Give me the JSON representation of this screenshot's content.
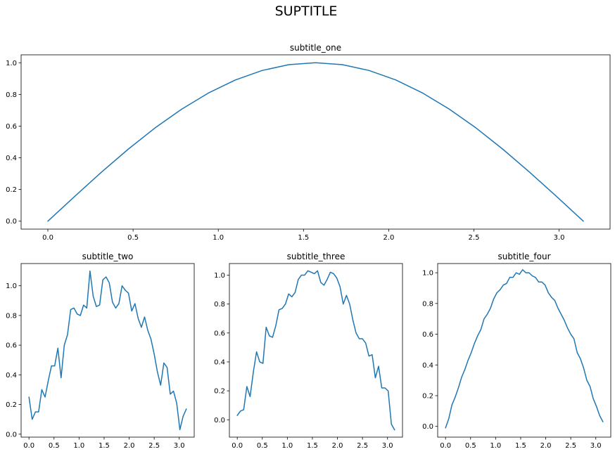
{
  "figure": {
    "suptitle": "SUPTITLE"
  },
  "chart_data": [
    {
      "type": "line",
      "title": "subtitle_one",
      "xlabel": "",
      "ylabel": "",
      "xlim": [
        -0.157,
        3.299
      ],
      "ylim": [
        -0.05,
        1.05
      ],
      "xticks": [
        0.0,
        0.5,
        1.0,
        1.5,
        2.0,
        2.5,
        3.0
      ],
      "xtick_labels": [
        "0.0",
        "0.5",
        "1.0",
        "1.5",
        "2.0",
        "2.5",
        "3.0"
      ],
      "yticks": [
        0.0,
        0.2,
        0.4,
        0.6,
        0.8,
        1.0
      ],
      "ytick_labels": [
        "0.0",
        "0.2",
        "0.4",
        "0.6",
        "0.8",
        "1.0"
      ],
      "grid": false,
      "color": "#1f77b4",
      "series": [
        {
          "x": [
            0.0,
            0.157,
            0.314,
            0.471,
            0.628,
            0.785,
            0.942,
            1.1,
            1.257,
            1.414,
            1.571,
            1.728,
            1.885,
            2.042,
            2.199,
            2.356,
            2.513,
            2.67,
            2.827,
            2.985,
            3.142
          ],
          "y": [
            0.0,
            0.156,
            0.309,
            0.454,
            0.588,
            0.707,
            0.809,
            0.891,
            0.951,
            0.988,
            1.0,
            0.988,
            0.951,
            0.891,
            0.809,
            0.707,
            0.588,
            0.454,
            0.309,
            0.156,
            0.0
          ]
        }
      ]
    },
    {
      "type": "line",
      "title": "subtitle_two",
      "xlabel": "",
      "ylabel": "",
      "xlim": [
        -0.157,
        3.299
      ],
      "ylim": [
        -0.02,
        1.15
      ],
      "xticks": [
        0.0,
        0.5,
        1.0,
        1.5,
        2.0,
        2.5,
        3.0
      ],
      "xtick_labels": [
        "0.0",
        "0.5",
        "1.0",
        "1.5",
        "2.0",
        "2.5",
        "3.0"
      ],
      "yticks": [
        0.0,
        0.2,
        0.4,
        0.6,
        0.8,
        1.0
      ],
      "ytick_labels": [
        "0.0",
        "0.2",
        "0.4",
        "0.6",
        "0.8",
        "1.0"
      ],
      "grid": false,
      "color": "#1f77b4",
      "series": [
        {
          "x": [
            0.0,
            0.064,
            0.128,
            0.192,
            0.256,
            0.321,
            0.385,
            0.449,
            0.513,
            0.577,
            0.641,
            0.705,
            0.769,
            0.833,
            0.898,
            0.962,
            1.026,
            1.09,
            1.154,
            1.218,
            1.282,
            1.346,
            1.41,
            1.475,
            1.539,
            1.603,
            1.667,
            1.731,
            1.795,
            1.859,
            1.923,
            1.987,
            2.052,
            2.116,
            2.18,
            2.244,
            2.308,
            2.372,
            2.436,
            2.5,
            2.564,
            2.629,
            2.693,
            2.757,
            2.821,
            2.885,
            2.949,
            3.013,
            3.077,
            3.142
          ],
          "y": [
            0.25,
            0.1,
            0.15,
            0.15,
            0.3,
            0.25,
            0.36,
            0.46,
            0.46,
            0.58,
            0.38,
            0.6,
            0.67,
            0.84,
            0.85,
            0.81,
            0.8,
            0.87,
            0.85,
            1.1,
            0.93,
            0.86,
            0.87,
            1.04,
            1.06,
            1.02,
            0.89,
            0.85,
            0.88,
            1.0,
            0.97,
            0.95,
            0.83,
            0.88,
            0.78,
            0.72,
            0.79,
            0.7,
            0.64,
            0.54,
            0.42,
            0.33,
            0.48,
            0.45,
            0.27,
            0.29,
            0.21,
            0.03,
            0.12,
            0.17
          ]
        }
      ]
    },
    {
      "type": "line",
      "title": "subtitle_three",
      "xlabel": "",
      "ylabel": "",
      "xlim": [
        -0.157,
        3.299
      ],
      "ylim": [
        -0.12,
        1.08
      ],
      "xticks": [
        0.0,
        0.5,
        1.0,
        1.5,
        2.0,
        2.5,
        3.0
      ],
      "xtick_labels": [
        "0.0",
        "0.5",
        "1.0",
        "1.5",
        "2.0",
        "2.5",
        "3.0"
      ],
      "yticks": [
        0.0,
        0.2,
        0.4,
        0.6,
        0.8,
        1.0
      ],
      "ytick_labels": [
        "0.0",
        "0.2",
        "0.4",
        "0.6",
        "0.8",
        "1.0"
      ],
      "grid": false,
      "color": "#1f77b4",
      "series": [
        {
          "x": [
            0.0,
            0.064,
            0.128,
            0.192,
            0.256,
            0.321,
            0.385,
            0.449,
            0.513,
            0.577,
            0.641,
            0.705,
            0.769,
            0.833,
            0.898,
            0.962,
            1.026,
            1.09,
            1.154,
            1.218,
            1.282,
            1.346,
            1.41,
            1.475,
            1.539,
            1.603,
            1.667,
            1.731,
            1.795,
            1.859,
            1.923,
            1.987,
            2.052,
            2.116,
            2.18,
            2.244,
            2.308,
            2.372,
            2.436,
            2.5,
            2.564,
            2.629,
            2.693,
            2.757,
            2.821,
            2.885,
            2.949,
            3.013,
            3.077,
            3.142
          ],
          "y": [
            0.03,
            0.06,
            0.07,
            0.23,
            0.16,
            0.33,
            0.47,
            0.4,
            0.39,
            0.64,
            0.58,
            0.57,
            0.65,
            0.76,
            0.77,
            0.8,
            0.87,
            0.85,
            0.88,
            0.97,
            1.0,
            1.0,
            1.03,
            1.02,
            1.01,
            1.03,
            0.95,
            0.93,
            0.97,
            1.02,
            1.01,
            0.98,
            0.92,
            0.8,
            0.86,
            0.8,
            0.69,
            0.6,
            0.56,
            0.56,
            0.53,
            0.44,
            0.45,
            0.29,
            0.37,
            0.22,
            0.22,
            0.2,
            -0.03,
            -0.07
          ]
        }
      ]
    },
    {
      "type": "line",
      "title": "subtitle_four",
      "xlabel": "",
      "ylabel": "",
      "xlim": [
        -0.157,
        3.299
      ],
      "ylim": [
        -0.07,
        1.06
      ],
      "xticks": [
        0.0,
        0.5,
        1.0,
        1.5,
        2.0,
        2.5,
        3.0
      ],
      "xtick_labels": [
        "0.0",
        "0.5",
        "1.0",
        "1.5",
        "2.0",
        "2.5",
        "3.0"
      ],
      "yticks": [
        0.0,
        0.2,
        0.4,
        0.6,
        0.8,
        1.0
      ],
      "ytick_labels": [
        "0.0",
        "0.2",
        "0.4",
        "0.6",
        "0.8",
        "1.0"
      ],
      "grid": false,
      "color": "#1f77b4",
      "series": [
        {
          "x": [
            0.0,
            0.064,
            0.128,
            0.192,
            0.256,
            0.321,
            0.385,
            0.449,
            0.513,
            0.577,
            0.641,
            0.705,
            0.769,
            0.833,
            0.898,
            0.962,
            1.026,
            1.09,
            1.154,
            1.218,
            1.282,
            1.346,
            1.41,
            1.475,
            1.539,
            1.603,
            1.667,
            1.731,
            1.795,
            1.859,
            1.923,
            1.987,
            2.052,
            2.116,
            2.18,
            2.244,
            2.308,
            2.372,
            2.436,
            2.5,
            2.564,
            2.629,
            2.693,
            2.757,
            2.821,
            2.885,
            2.949,
            3.013,
            3.077,
            3.142
          ],
          "y": [
            -0.01,
            0.05,
            0.14,
            0.19,
            0.25,
            0.32,
            0.37,
            0.43,
            0.48,
            0.54,
            0.59,
            0.63,
            0.7,
            0.73,
            0.77,
            0.83,
            0.87,
            0.89,
            0.92,
            0.93,
            0.97,
            0.97,
            1.0,
            0.99,
            1.02,
            1.0,
            1.0,
            0.98,
            0.97,
            0.94,
            0.94,
            0.92,
            0.87,
            0.84,
            0.82,
            0.77,
            0.73,
            0.69,
            0.64,
            0.6,
            0.57,
            0.48,
            0.44,
            0.38,
            0.3,
            0.26,
            0.18,
            0.13,
            0.07,
            0.03
          ]
        }
      ]
    }
  ]
}
